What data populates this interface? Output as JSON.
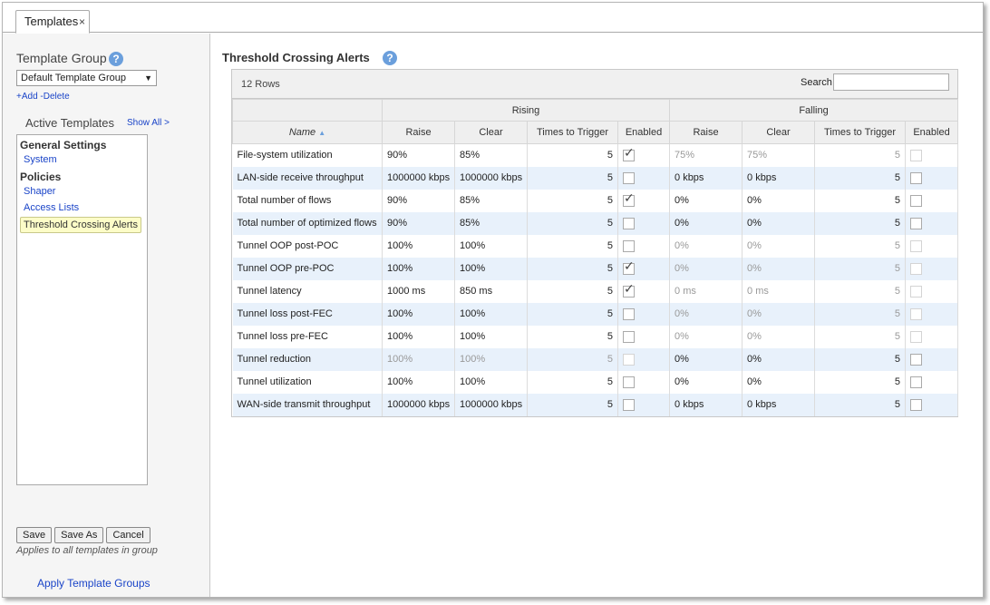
{
  "tab": {
    "label": "Templates",
    "close": "×"
  },
  "sidebar": {
    "template_group_label": "Template Group",
    "help_glyph": "?",
    "group_select_value": "Default Template Group",
    "add_label": "+Add",
    "delete_label": "-Delete",
    "active_templates_label": "Active Templates",
    "show_all_label": "Show All >",
    "tree": {
      "general_settings": "General Settings",
      "system": "System",
      "policies": "Policies",
      "shaper": "Shaper",
      "access_lists": "Access Lists",
      "threshold": "Threshold Crossing Alerts"
    },
    "buttons": {
      "save": "Save",
      "save_as": "Save As",
      "cancel": "Cancel"
    },
    "applies_note": "Applies to all templates in group",
    "apply_template_groups": "Apply Template Groups"
  },
  "main": {
    "title": "Threshold Crossing Alerts",
    "help_glyph": "?",
    "rows_count": "12 Rows",
    "search_label": "Search",
    "search_value": "",
    "group_headers": {
      "rising": "Rising",
      "falling": "Falling"
    },
    "columns": {
      "name": "Name",
      "raise": "Raise",
      "clear": "Clear",
      "times": "Times to Trigger",
      "enabled": "Enabled"
    },
    "sort_glyph": "▲"
  },
  "rows": [
    {
      "name": "File-system utilization",
      "r_raise": "90%",
      "r_clear": "85%",
      "r_times": "5",
      "r_enabled": true,
      "r_dim": false,
      "f_raise": "75%",
      "f_clear": "75%",
      "f_times": "5",
      "f_enabled": false,
      "f_dim": true
    },
    {
      "name": "LAN-side receive throughput",
      "r_raise": "1000000 kbps",
      "r_clear": "1000000 kbps",
      "r_times": "5",
      "r_enabled": false,
      "r_dim": false,
      "f_raise": "0 kbps",
      "f_clear": "0 kbps",
      "f_times": "5",
      "f_enabled": false,
      "f_dim": false
    },
    {
      "name": "Total number of flows",
      "r_raise": "90%",
      "r_clear": "85%",
      "r_times": "5",
      "r_enabled": true,
      "r_dim": false,
      "f_raise": "0%",
      "f_clear": "0%",
      "f_times": "5",
      "f_enabled": false,
      "f_dim": false
    },
    {
      "name": "Total number of optimized flows",
      "r_raise": "90%",
      "r_clear": "85%",
      "r_times": "5",
      "r_enabled": false,
      "r_dim": false,
      "f_raise": "0%",
      "f_clear": "0%",
      "f_times": "5",
      "f_enabled": false,
      "f_dim": false
    },
    {
      "name": "Tunnel OOP post-POC",
      "r_raise": "100%",
      "r_clear": "100%",
      "r_times": "5",
      "r_enabled": false,
      "r_dim": false,
      "f_raise": "0%",
      "f_clear": "0%",
      "f_times": "5",
      "f_enabled": false,
      "f_dim": true
    },
    {
      "name": "Tunnel OOP pre-POC",
      "r_raise": "100%",
      "r_clear": "100%",
      "r_times": "5",
      "r_enabled": true,
      "r_dim": false,
      "f_raise": "0%",
      "f_clear": "0%",
      "f_times": "5",
      "f_enabled": false,
      "f_dim": true
    },
    {
      "name": "Tunnel latency",
      "r_raise": "1000 ms",
      "r_clear": "850 ms",
      "r_times": "5",
      "r_enabled": true,
      "r_dim": false,
      "f_raise": "0 ms",
      "f_clear": "0 ms",
      "f_times": "5",
      "f_enabled": false,
      "f_dim": true
    },
    {
      "name": "Tunnel loss post-FEC",
      "r_raise": "100%",
      "r_clear": "100%",
      "r_times": "5",
      "r_enabled": false,
      "r_dim": false,
      "f_raise": "0%",
      "f_clear": "0%",
      "f_times": "5",
      "f_enabled": false,
      "f_dim": true
    },
    {
      "name": "Tunnel loss pre-FEC",
      "r_raise": "100%",
      "r_clear": "100%",
      "r_times": "5",
      "r_enabled": false,
      "r_dim": false,
      "f_raise": "0%",
      "f_clear": "0%",
      "f_times": "5",
      "f_enabled": false,
      "f_dim": true
    },
    {
      "name": "Tunnel reduction",
      "r_raise": "100%",
      "r_clear": "100%",
      "r_times": "5",
      "r_enabled": false,
      "r_dim": true,
      "f_raise": "0%",
      "f_clear": "0%",
      "f_times": "5",
      "f_enabled": false,
      "f_dim": false
    },
    {
      "name": "Tunnel utilization",
      "r_raise": "100%",
      "r_clear": "100%",
      "r_times": "5",
      "r_enabled": false,
      "r_dim": false,
      "f_raise": "0%",
      "f_clear": "0%",
      "f_times": "5",
      "f_enabled": false,
      "f_dim": false
    },
    {
      "name": "WAN-side transmit throughput",
      "r_raise": "1000000 kbps",
      "r_clear": "1000000 kbps",
      "r_times": "5",
      "r_enabled": false,
      "r_dim": false,
      "f_raise": "0 kbps",
      "f_clear": "0 kbps",
      "f_times": "5",
      "f_enabled": false,
      "f_dim": false
    }
  ]
}
